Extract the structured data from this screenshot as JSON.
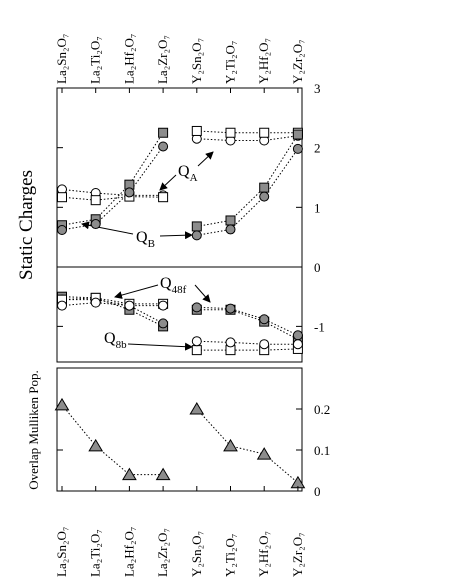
{
  "chart_data": [
    {
      "type": "line",
      "y_label": "Static Charges",
      "categories": [
        "La₂Sn₂O₇",
        "La₂Ti₂O₇",
        "La₂Hf₂O₇",
        "La₂Zr₂O₇",
        "Y₂Sn₂O₇",
        "Y₂Ti₂O₇",
        "Y₂Hf₂O₇",
        "Y₂Zr₂O₇"
      ],
      "ylim": [
        0,
        3
      ],
      "yticks": [
        0,
        1,
        2,
        3
      ],
      "annotations": [
        {
          "text": "Q",
          "sub": "A"
        },
        {
          "text": "Q",
          "sub": "B"
        }
      ],
      "series": [
        {
          "marker": "circle",
          "color": "#ffffff",
          "values": [
            1.3,
            1.24,
            1.2,
            1.2,
            null,
            null,
            null,
            null
          ]
        },
        {
          "marker": "circle",
          "color": "#ffffff",
          "values": [
            null,
            null,
            null,
            null,
            2.15,
            2.12,
            2.12,
            2.2
          ]
        },
        {
          "marker": "square",
          "color": "#ffffff",
          "values": [
            1.17,
            1.12,
            1.18,
            1.17,
            null,
            null,
            null,
            null
          ]
        },
        {
          "marker": "square",
          "color": "#ffffff",
          "values": [
            null,
            null,
            null,
            null,
            2.28,
            2.25,
            2.25,
            2.25
          ]
        },
        {
          "marker": "square",
          "color": "#8c8c8c",
          "values": [
            0.7,
            0.8,
            1.38,
            2.25,
            null,
            null,
            null,
            null
          ]
        },
        {
          "marker": "square",
          "color": "#8c8c8c",
          "values": [
            null,
            null,
            null,
            null,
            0.68,
            0.78,
            1.33,
            2.22
          ]
        },
        {
          "marker": "circle",
          "color": "#8c8c8c",
          "values": [
            0.62,
            0.72,
            1.25,
            2.02,
            null,
            null,
            null,
            null
          ]
        },
        {
          "marker": "circle",
          "color": "#8c8c8c",
          "values": [
            null,
            null,
            null,
            null,
            0.53,
            0.63,
            1.18,
            1.98
          ]
        }
      ]
    },
    {
      "type": "line",
      "ylim": [
        -1.6,
        0
      ],
      "yticks": [
        -1
      ],
      "annotations": [
        {
          "text": "Q",
          "sub": "48f"
        },
        {
          "text": "Q",
          "sub": "8b"
        }
      ],
      "series": [
        {
          "marker": "square",
          "color": "#8c8c8c",
          "values": [
            -0.5,
            -0.52,
            -0.72,
            -1.0,
            null,
            null,
            null,
            null
          ]
        },
        {
          "marker": "square",
          "color": "#8c8c8c",
          "values": [
            null,
            null,
            null,
            null,
            -0.72,
            -0.72,
            -0.92,
            -1.22
          ]
        },
        {
          "marker": "circle",
          "color": "#8c8c8c",
          "values": [
            -0.55,
            -0.55,
            -0.65,
            -0.95,
            null,
            null,
            null,
            null
          ]
        },
        {
          "marker": "circle",
          "color": "#8c8c8c",
          "values": [
            null,
            null,
            null,
            null,
            -0.68,
            -0.7,
            -0.88,
            -1.15
          ]
        },
        {
          "marker": "square",
          "color": "#ffffff",
          "values": [
            -0.55,
            -0.52,
            -0.62,
            -0.62,
            null,
            null,
            null,
            null
          ]
        },
        {
          "marker": "square",
          "color": "#ffffff",
          "values": [
            null,
            null,
            null,
            null,
            -1.4,
            -1.4,
            -1.4,
            -1.38
          ]
        },
        {
          "marker": "circle",
          "color": "#ffffff",
          "values": [
            -0.65,
            -0.6,
            -0.65,
            -0.65,
            null,
            null,
            null,
            null
          ]
        },
        {
          "marker": "circle",
          "color": "#ffffff",
          "values": [
            null,
            null,
            null,
            null,
            -1.25,
            -1.27,
            -1.3,
            -1.3
          ]
        }
      ]
    },
    {
      "type": "line",
      "y_label": "Overlap Mulliken Pop.",
      "categories": [
        "La₂Sn₂O₇",
        "La₂Ti₂O₇",
        "La₂Hf₂O₇",
        "La₂Zr₂O₇",
        "Y₂Sn₂O₇",
        "Y₂Ti₂O₇",
        "Y₂Hf₂O₇",
        "Y₂Zr₂O₇"
      ],
      "ylim": [
        0,
        0.3
      ],
      "yticks": [
        0,
        0.1,
        0.2
      ],
      "series": [
        {
          "marker": "triangle",
          "color": "#8c8c8c",
          "values": [
            0.21,
            0.11,
            0.04,
            0.04,
            null,
            null,
            null,
            null
          ]
        },
        {
          "marker": "triangle",
          "color": "#8c8c8c",
          "values": [
            null,
            null,
            null,
            null,
            0.2,
            0.11,
            0.09,
            0.02
          ]
        }
      ]
    }
  ]
}
